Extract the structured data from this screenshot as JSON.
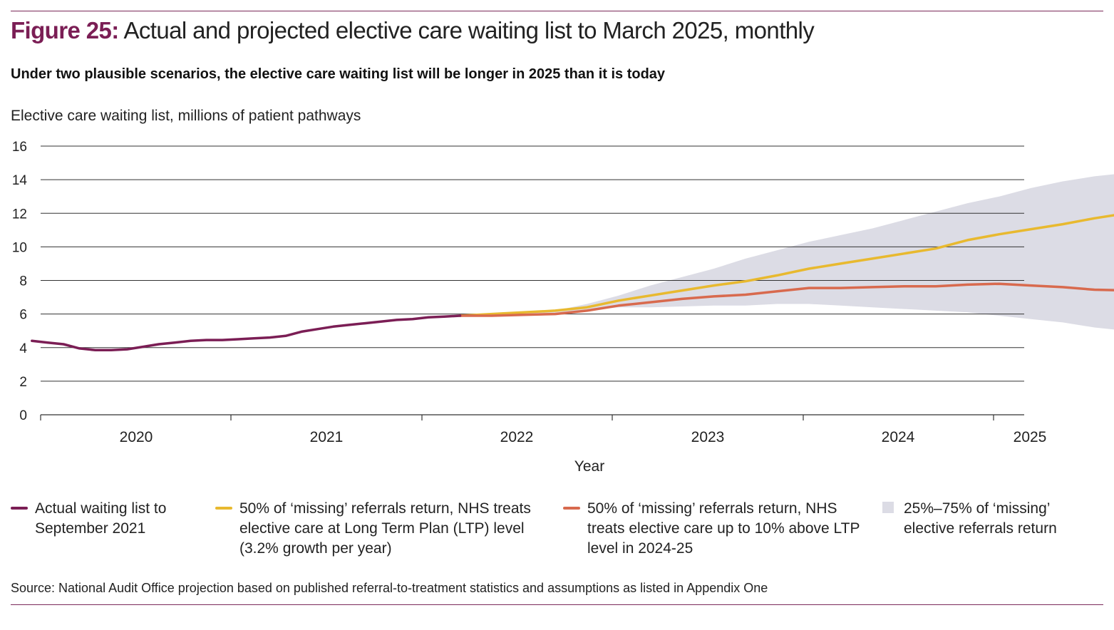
{
  "header": {
    "figure_label": "Figure 25:",
    "title": "Actual and projected elective care waiting list to March 2025, monthly",
    "subtitle": "Under two plausible scenarios, the elective care waiting list will be longer in 2025 than it is today",
    "y_axis_title": "Elective care waiting list, millions of patient pathways"
  },
  "chart_data": {
    "type": "line",
    "xlabel": "Year",
    "ylabel": "Elective care waiting list, millions of patient pathways",
    "ylim": [
      0,
      16
    ],
    "yticks": [
      0,
      2,
      4,
      6,
      8,
      10,
      12,
      14,
      16
    ],
    "xticks": [
      "2020",
      "2021",
      "2022",
      "2023",
      "2024",
      "2025"
    ],
    "xlim": [
      "2019-06",
      "2025-03"
    ],
    "grid": true,
    "series": [
      {
        "name": "Actual waiting list to September 2021",
        "color": "#7b1e55",
        "x": [
          "2019-06",
          "2019-07",
          "2019-08",
          "2019-09",
          "2019-10",
          "2019-11",
          "2019-12",
          "2020-01",
          "2020-02",
          "2020-03",
          "2020-04",
          "2020-05",
          "2020-06",
          "2020-07",
          "2020-08",
          "2020-09",
          "2020-10",
          "2020-11",
          "2020-12",
          "2021-01",
          "2021-02",
          "2021-03",
          "2021-04",
          "2021-05",
          "2021-06",
          "2021-07",
          "2021-08",
          "2021-09"
        ],
        "y": [
          4.4,
          4.3,
          4.2,
          3.95,
          3.85,
          3.85,
          3.9,
          4.05,
          4.2,
          4.3,
          4.4,
          4.45,
          4.45,
          4.5,
          4.55,
          4.6,
          4.7,
          4.95,
          5.1,
          5.25,
          5.35,
          5.45,
          5.55,
          5.65,
          5.7,
          5.8,
          5.85,
          5.9
        ]
      },
      {
        "name": "50% of ‘missing’ referrals return, NHS treats elective care at Long Term Plan (LTP) level (3.2% growth per year)",
        "color": "#e8b92f",
        "x": [
          "2021-09",
          "2021-11",
          "2022-01",
          "2022-03",
          "2022-05",
          "2022-07",
          "2022-09",
          "2022-11",
          "2023-01",
          "2023-03",
          "2023-05",
          "2023-07",
          "2023-09",
          "2023-11",
          "2024-01",
          "2024-03",
          "2024-05",
          "2024-07",
          "2024-09",
          "2024-11",
          "2025-01",
          "2025-03"
        ],
        "y": [
          5.9,
          6.0,
          6.1,
          6.2,
          6.4,
          6.8,
          7.1,
          7.4,
          7.7,
          7.95,
          8.3,
          8.7,
          9.0,
          9.3,
          9.6,
          9.9,
          10.4,
          10.75,
          11.05,
          11.35,
          11.7,
          12.0
        ]
      },
      {
        "name": "50% of ‘missing’ referrals return, NHS treats elective care up to 10% above LTP level in 2024-25",
        "color": "#d86a4e",
        "x": [
          "2021-09",
          "2021-11",
          "2022-01",
          "2022-03",
          "2022-05",
          "2022-07",
          "2022-09",
          "2022-11",
          "2023-01",
          "2023-03",
          "2023-05",
          "2023-07",
          "2023-09",
          "2023-11",
          "2024-01",
          "2024-03",
          "2024-05",
          "2024-07",
          "2024-09",
          "2024-11",
          "2025-01",
          "2025-03"
        ],
        "y": [
          5.9,
          5.9,
          5.95,
          6.0,
          6.2,
          6.5,
          6.7,
          6.9,
          7.05,
          7.15,
          7.35,
          7.55,
          7.55,
          7.6,
          7.65,
          7.65,
          7.75,
          7.8,
          7.7,
          7.6,
          7.45,
          7.4
        ]
      }
    ],
    "band": {
      "name": "25%–75% of ‘missing’ elective referrals return",
      "color": "#dcdce5",
      "x": [
        "2021-09",
        "2021-11",
        "2022-01",
        "2022-03",
        "2022-05",
        "2022-07",
        "2022-09",
        "2022-11",
        "2023-01",
        "2023-03",
        "2023-05",
        "2023-07",
        "2023-09",
        "2023-11",
        "2024-01",
        "2024-03",
        "2024-05",
        "2024-07",
        "2024-09",
        "2024-11",
        "2025-01",
        "2025-03"
      ],
      "low": [
        5.9,
        5.9,
        5.95,
        6.0,
        6.2,
        6.4,
        6.4,
        6.45,
        6.5,
        6.5,
        6.6,
        6.6,
        6.5,
        6.4,
        6.3,
        6.2,
        6.1,
        5.9,
        5.7,
        5.5,
        5.2,
        5.0
      ],
      "high": [
        5.9,
        6.0,
        6.1,
        6.2,
        6.6,
        7.1,
        7.7,
        8.2,
        8.7,
        9.3,
        9.8,
        10.3,
        10.7,
        11.1,
        11.6,
        12.1,
        12.6,
        13.0,
        13.5,
        13.9,
        14.2,
        14.4
      ]
    }
  },
  "legend": [
    {
      "label": "Actual waiting list to September 2021",
      "color": "#7b1e55",
      "kind": "line"
    },
    {
      "label": "50% of ‘missing’ referrals return, NHS treats elective care at Long Term Plan (LTP) level (3.2% growth per year)",
      "color": "#e8b92f",
      "kind": "line"
    },
    {
      "label": "50% of ‘missing’ referrals return, NHS treats elective care up to 10% above LTP level in 2024-25",
      "color": "#d86a4e",
      "kind": "line"
    },
    {
      "label": "25%–75% of ‘missing’ elective referrals return",
      "color": "#dcdce5",
      "kind": "box"
    }
  ],
  "footer": {
    "source": "Source: National Audit Office projection based on published referral-to-treatment statistics and assumptions as listed in Appendix One"
  }
}
